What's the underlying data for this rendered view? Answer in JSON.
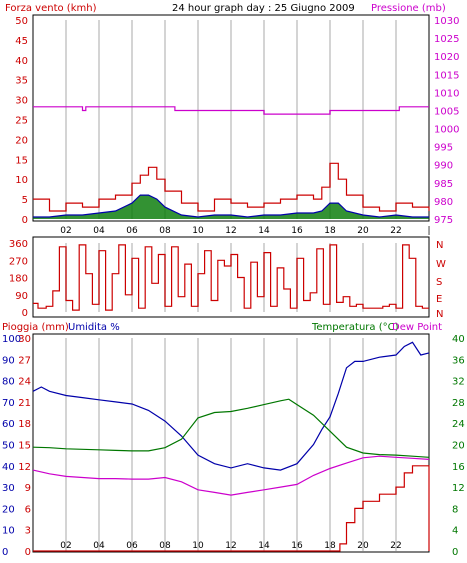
{
  "title": "24 hour graph day : 25 Giugno 2009",
  "colors": {
    "wind": "#cc0000",
    "wind_avg": "#0000aa",
    "pressure": "#cc00cc",
    "wind_fill": "#007700",
    "rain": "#cc0000",
    "humidity": "#0000aa",
    "temperature": "#007700",
    "dew_point": "#cc00cc",
    "grid": "#d4d4d4",
    "axis_text": "#cc0000",
    "axis_text_right_top": "#cc00cc",
    "axis_text_right_bottom": "#007700"
  },
  "panels": {
    "top": {
      "left_label": "Forza vento (kmh)",
      "right_label": "Pressione (mb)"
    },
    "middle": {
      "compass": [
        "N",
        "W",
        "S",
        "E",
        "N"
      ]
    },
    "bottom": {
      "left_label_1": "Pioggia (mm)",
      "left_label_2": "Umidita %",
      "right_label_1": "Temperatura (°C)",
      "right_label_2": "Dew Point"
    }
  },
  "chart_data": [
    {
      "type": "line",
      "name": "wind_and_pressure",
      "x_ticks": [
        "02",
        "04",
        "06",
        "08",
        "10",
        "12",
        "14",
        "16",
        "18",
        "20",
        "22",
        "|"
      ],
      "x_range_hours": [
        0,
        24
      ],
      "y_left_ticks": [
        "0",
        "5",
        "10",
        "15",
        "20",
        "25",
        "30",
        "35",
        "40",
        "45",
        "50"
      ],
      "ylim_left": [
        0,
        50
      ],
      "y_right_ticks": [
        "975",
        "980",
        "985",
        "990",
        "995",
        "1000",
        "1005",
        "1010",
        "1015",
        "1020",
        "1025",
        "1030"
      ],
      "ylim_right": [
        975,
        1030
      ],
      "series": [
        {
          "name": "Forza vento (kmh)",
          "x_hours": [
            0,
            1,
            2,
            3,
            4,
            5,
            6,
            6.5,
            7,
            7.5,
            8,
            9,
            10,
            11,
            12,
            13,
            14,
            15,
            16,
            17,
            17.5,
            18,
            18.5,
            19,
            20,
            21,
            22,
            23,
            24
          ],
          "values": [
            5,
            2,
            4,
            3,
            5,
            6,
            9,
            11,
            13,
            10,
            7,
            4,
            2,
            5,
            4,
            3,
            4,
            5,
            6,
            5,
            8,
            14,
            10,
            6,
            3,
            2,
            4,
            3,
            2
          ]
        },
        {
          "name": "Vento medio",
          "x_hours": [
            0,
            1,
            2,
            3,
            4,
            5,
            6,
            6.5,
            7,
            7.5,
            8,
            9,
            10,
            11,
            12,
            13,
            14,
            15,
            16,
            17,
            17.5,
            18,
            18.5,
            19,
            20,
            21,
            22,
            23,
            24
          ],
          "values": [
            0.5,
            0.5,
            1,
            1,
            1.5,
            2,
            4,
            6,
            6,
            5,
            3,
            1,
            0.5,
            1,
            1,
            0.5,
            1,
            1,
            1.5,
            1.5,
            2,
            4,
            4,
            2,
            1,
            0.5,
            1,
            0.5,
            0.5
          ]
        },
        {
          "name": "Pressione (mb)",
          "x_hours": [
            0,
            2.8,
            3.0,
            3.2,
            8.4,
            8.6,
            13.8,
            14.0,
            15.6,
            15.8,
            17.8,
            18.0,
            22.0,
            22.2,
            22.7,
            22.9,
            24.0
          ],
          "values": [
            1006,
            1006,
            1005,
            1006,
            1006,
            1005,
            1005,
            1004,
            1004,
            1004,
            1004,
            1005,
            1005,
            1006,
            1006,
            1006,
            1006
          ]
        }
      ]
    },
    {
      "type": "line",
      "name": "wind_direction",
      "x_range_hours": [
        0,
        24
      ],
      "y_left_ticks": [
        "0",
        "90",
        "180",
        "270",
        "360"
      ],
      "ylim": [
        0,
        360
      ],
      "series": [
        {
          "name": "Direzione vento",
          "x_hours": [
            0,
            0.3,
            0.8,
            1.2,
            1.6,
            2.0,
            2.4,
            2.8,
            3.2,
            3.6,
            4.0,
            4.4,
            4.8,
            5.2,
            5.6,
            6.0,
            6.4,
            6.8,
            7.2,
            7.6,
            8.0,
            8.4,
            8.8,
            9.2,
            9.6,
            10.0,
            10.4,
            10.8,
            11.2,
            11.6,
            12.0,
            12.4,
            12.8,
            13.2,
            13.6,
            14.0,
            14.4,
            14.8,
            15.2,
            15.6,
            16.0,
            16.4,
            16.8,
            17.2,
            17.6,
            18.0,
            18.4,
            18.8,
            19.2,
            19.6,
            20.0,
            20.4,
            20.8,
            21.2,
            21.6,
            22.0,
            22.4,
            22.8,
            23.2,
            23.6,
            24.0
          ],
          "values": [
            45,
            20,
            30,
            110,
            340,
            60,
            10,
            350,
            200,
            40,
            320,
            10,
            200,
            350,
            90,
            280,
            20,
            340,
            150,
            300,
            30,
            340,
            80,
            250,
            30,
            200,
            320,
            60,
            270,
            240,
            300,
            180,
            20,
            260,
            80,
            310,
            30,
            230,
            120,
            20,
            280,
            60,
            100,
            330,
            40,
            350,
            50,
            80,
            30,
            40,
            20,
            20,
            20,
            30,
            40,
            20,
            350,
            280,
            30,
            20,
            20
          ]
        }
      ]
    },
    {
      "type": "line",
      "name": "rain_humidity_temperature",
      "x_ticks": [
        "02",
        "04",
        "06",
        "08",
        "10",
        "12",
        "14",
        "16",
        "18",
        "20",
        "22",
        "|"
      ],
      "x_range_hours": [
        0,
        24
      ],
      "y_left_ticks_rain": [
        "0",
        "3",
        "6",
        "9",
        "12",
        "15",
        "18",
        "21",
        "24",
        "27",
        "30"
      ],
      "ylim_rain": [
        0,
        30
      ],
      "y_left_ticks_humidity": [
        "0",
        "10",
        "20",
        "30",
        "40",
        "50",
        "60",
        "70",
        "80",
        "90",
        "100"
      ],
      "ylim_humidity": [
        0,
        100
      ],
      "y_right_ticks": [
        "0",
        "4",
        "8",
        "12",
        "16",
        "20",
        "24",
        "28",
        "32",
        "36",
        "40"
      ],
      "ylim_right": [
        0,
        40
      ],
      "series": [
        {
          "name": "Pioggia (mm)",
          "x_hours": [
            0,
            18.4,
            18.6,
            19.0,
            19.5,
            20.0,
            21.0,
            22.0,
            22.5,
            23.0,
            23.9,
            24.0
          ],
          "values": [
            0,
            0,
            1,
            4,
            6,
            7,
            8,
            9,
            11,
            12,
            12,
            0
          ]
        },
        {
          "name": "Umidita %",
          "x_hours": [
            0,
            0.5,
            1,
            2,
            3,
            4,
            5,
            6,
            7,
            8,
            9,
            10,
            11,
            12,
            13,
            14,
            15,
            16,
            17,
            17.5,
            18,
            18.5,
            19,
            19.5,
            20,
            21,
            22,
            22.5,
            23,
            23.5,
            24
          ],
          "values": [
            75,
            77,
            75,
            73,
            72,
            71,
            70,
            69,
            66,
            61,
            54,
            45,
            41,
            39,
            41,
            39,
            38,
            41,
            50,
            57,
            63,
            74,
            86,
            89,
            89,
            91,
            92,
            96,
            98,
            92,
            93
          ]
        },
        {
          "name": "Temperatura (°C)",
          "x_hours": [
            0,
            1,
            2,
            3,
            4,
            5,
            6,
            7,
            8,
            9,
            10,
            11,
            12,
            13,
            14,
            15,
            15.5,
            16,
            17,
            18,
            19,
            20,
            21,
            22,
            23,
            24
          ],
          "values": [
            19.5,
            19.4,
            19.2,
            19.1,
            19.0,
            18.9,
            18.8,
            18.8,
            19.4,
            21,
            25,
            26,
            26.2,
            26.8,
            27.5,
            28.2,
            28.5,
            27.5,
            25.5,
            22.5,
            19.5,
            18.4,
            18.1,
            18.0,
            17.8,
            17.6
          ]
        },
        {
          "name": "Dew Point",
          "x_hours": [
            0,
            1,
            2,
            3,
            4,
            5,
            6,
            7,
            8,
            9,
            10,
            11,
            12,
            13,
            14,
            15,
            16,
            17,
            18,
            19,
            20,
            21,
            22,
            23,
            24
          ],
          "values": [
            15.2,
            14.5,
            14.0,
            13.8,
            13.6,
            13.6,
            13.5,
            13.5,
            13.8,
            13.0,
            11.5,
            11.0,
            10.5,
            11.0,
            11.5,
            12.0,
            12.5,
            14.2,
            15.5,
            16.5,
            17.5,
            17.8,
            17.6,
            17.4,
            17.2
          ]
        }
      ]
    }
  ]
}
